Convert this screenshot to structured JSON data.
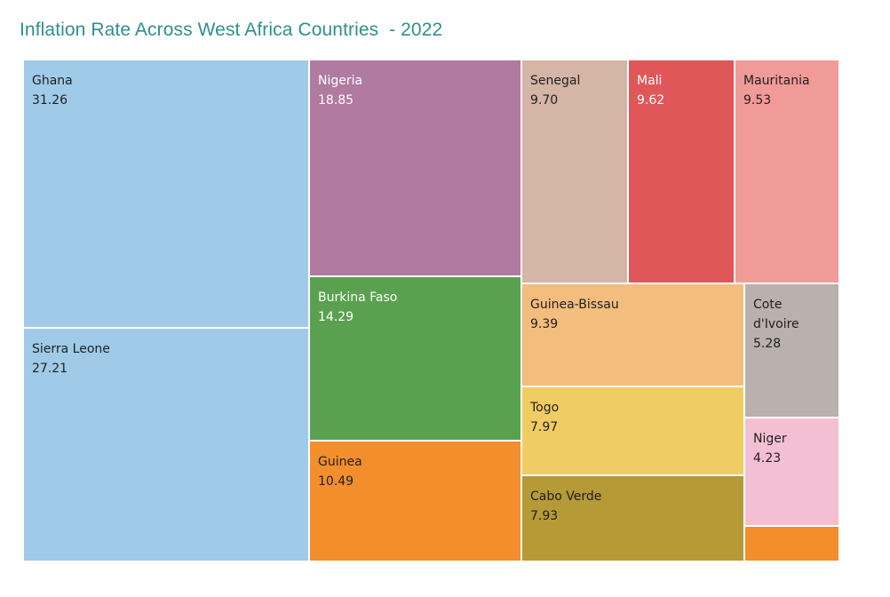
{
  "chart_data": {
    "type": "treemap",
    "title": "Inflation Rate Across West Africa Countries  - 2022",
    "items": [
      {
        "name": "Ghana",
        "value": 31.26,
        "value_label": "31.26",
        "color": "#a0cbe8",
        "text_color": "#1f1f1f"
      },
      {
        "name": "Sierra Leone",
        "value": 27.21,
        "value_label": "27.21",
        "color": "#a0cbe8",
        "text_color": "#1f1f1f"
      },
      {
        "name": "Nigeria",
        "value": 18.85,
        "value_label": "18.85",
        "color": "#b07aa1",
        "text_color": "#ffffff"
      },
      {
        "name": "Burkina Faso",
        "value": 14.29,
        "value_label": "14.29",
        "color": "#59a14f",
        "text_color": "#ffffff"
      },
      {
        "name": "Guinea",
        "value": 10.49,
        "value_label": "10.49",
        "color": "#f28e2b",
        "text_color": "#1f1f1f"
      },
      {
        "name": "Senegal",
        "value": 9.7,
        "value_label": "9.70",
        "color": "#d4b5a6",
        "text_color": "#1f1f1f"
      },
      {
        "name": "Mali",
        "value": 9.62,
        "value_label": "9.62",
        "color": "#e15759",
        "text_color": "#ffffff"
      },
      {
        "name": "Mauritania",
        "value": 9.53,
        "value_label": "9.53",
        "color": "#f19b99",
        "text_color": "#1f1f1f"
      },
      {
        "name": "Guinea-Bissau",
        "value": 9.39,
        "value_label": "9.39",
        "color": "#f3bd7d",
        "text_color": "#1f1f1f"
      },
      {
        "name": "Togo",
        "value": 7.97,
        "value_label": "7.97",
        "color": "#f0cd63",
        "text_color": "#1f1f1f"
      },
      {
        "name": "Cabo Verde",
        "value": 7.93,
        "value_label": "7.93",
        "color": "#b59a35",
        "text_color": "#1f1f1f"
      },
      {
        "name": "Cote\nd'Ivoire",
        "value": 5.28,
        "value_label": "5.28",
        "color": "#bab0ac",
        "text_color": "#1f1f1f"
      },
      {
        "name": "Niger",
        "value": 4.23,
        "value_label": "4.23",
        "color": "#f4bfd2",
        "text_color": "#1f1f1f"
      },
      {
        "name": "",
        "value": null,
        "value_label": "",
        "color": "#f28e2b",
        "text_color": "#1f1f1f"
      }
    ]
  }
}
